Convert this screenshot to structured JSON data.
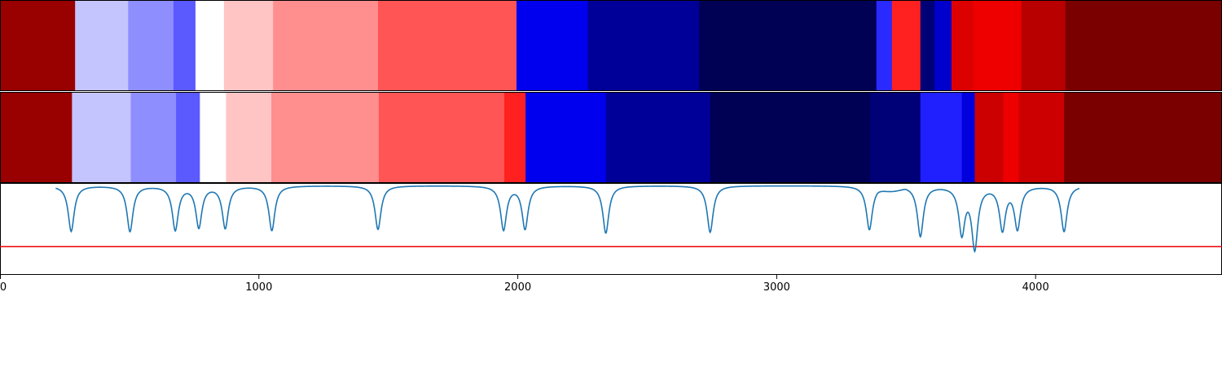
{
  "chart_data": {
    "type": "heatmap",
    "title": "",
    "xlabel": "",
    "ylabel": "",
    "xlim": [
      0,
      4720
    ],
    "grid": false,
    "colormap": "seismic",
    "xticks": [
      {
        "value": 0,
        "label": "0"
      },
      {
        "value": 1000,
        "label": "1000"
      },
      {
        "value": 2000,
        "label": "2000"
      },
      {
        "value": 3000,
        "label": "3000"
      },
      {
        "value": 4000,
        "label": "4000"
      }
    ],
    "rows": [
      {
        "name": "",
        "segments": [
          {
            "start": 0,
            "end": 290,
            "color": "#990000"
          },
          {
            "start": 290,
            "end": 495,
            "color": "#c4c4ff"
          },
          {
            "start": 495,
            "end": 670,
            "color": "#8e8eff"
          },
          {
            "start": 670,
            "end": 755,
            "color": "#5a5aff"
          },
          {
            "start": 755,
            "end": 865,
            "color": "#ffffff"
          },
          {
            "start": 865,
            "end": 1055,
            "color": "#ffc4c4"
          },
          {
            "start": 1055,
            "end": 1460,
            "color": "#ff8e8e"
          },
          {
            "start": 1460,
            "end": 1995,
            "color": "#ff5555"
          },
          {
            "start": 1995,
            "end": 2270,
            "color": "#0000ee"
          },
          {
            "start": 2270,
            "end": 2700,
            "color": "#000099"
          },
          {
            "start": 2700,
            "end": 3385,
            "color": "#000055"
          },
          {
            "start": 3385,
            "end": 3445,
            "color": "#2a2aff"
          },
          {
            "start": 3445,
            "end": 3555,
            "color": "#ff2020"
          },
          {
            "start": 3555,
            "end": 3610,
            "color": "#000077"
          },
          {
            "start": 3610,
            "end": 3675,
            "color": "#0000cc"
          },
          {
            "start": 3675,
            "end": 3760,
            "color": "#dd0000"
          },
          {
            "start": 3760,
            "end": 3945,
            "color": "#ee0000"
          },
          {
            "start": 3945,
            "end": 4115,
            "color": "#b80000"
          },
          {
            "start": 4115,
            "end": 4720,
            "color": "#7a0000"
          }
        ]
      },
      {
        "name": "",
        "segments": [
          {
            "start": 0,
            "end": 278,
            "color": "#990000"
          },
          {
            "start": 278,
            "end": 505,
            "color": "#c4c4ff"
          },
          {
            "start": 505,
            "end": 680,
            "color": "#8e8eff"
          },
          {
            "start": 680,
            "end": 772,
            "color": "#5a5aff"
          },
          {
            "start": 772,
            "end": 873,
            "color": "#ffffff"
          },
          {
            "start": 873,
            "end": 1048,
            "color": "#ffc4c4"
          },
          {
            "start": 1048,
            "end": 1463,
            "color": "#ff8e8e"
          },
          {
            "start": 1463,
            "end": 1948,
            "color": "#ff5555"
          },
          {
            "start": 1948,
            "end": 2030,
            "color": "#ff2020"
          },
          {
            "start": 2030,
            "end": 2340,
            "color": "#0000ee"
          },
          {
            "start": 2340,
            "end": 2743,
            "color": "#000099"
          },
          {
            "start": 2743,
            "end": 3360,
            "color": "#000055"
          },
          {
            "start": 3360,
            "end": 3555,
            "color": "#000077"
          },
          {
            "start": 3555,
            "end": 3715,
            "color": "#2020ff"
          },
          {
            "start": 3715,
            "end": 3765,
            "color": "#0000dd"
          },
          {
            "start": 3765,
            "end": 3875,
            "color": "#cc0000"
          },
          {
            "start": 3875,
            "end": 3935,
            "color": "#ee0000"
          },
          {
            "start": 3935,
            "end": 4110,
            "color": "#cc0000"
          },
          {
            "start": 4110,
            "end": 4720,
            "color": "#7a0000"
          }
        ]
      }
    ],
    "line_panel": {
      "ylim": [
        0,
        1
      ],
      "baseline": 0.98,
      "threshold": {
        "value": 0.31,
        "color": "#ee0000"
      },
      "line_color": "#1f77b4",
      "dips": [
        {
          "x": 275,
          "depth": 0.5
        },
        {
          "x": 502,
          "depth": 0.5
        },
        {
          "x": 677,
          "depth": 0.48
        },
        {
          "x": 768,
          "depth": 0.45
        },
        {
          "x": 870,
          "depth": 0.46
        },
        {
          "x": 1050,
          "depth": 0.49
        },
        {
          "x": 1460,
          "depth": 0.48
        },
        {
          "x": 1945,
          "depth": 0.48
        },
        {
          "x": 2028,
          "depth": 0.47
        },
        {
          "x": 2340,
          "depth": 0.52
        },
        {
          "x": 2743,
          "depth": 0.51
        },
        {
          "x": 3358,
          "depth": 0.48
        },
        {
          "x": 3555,
          "depth": 0.55
        },
        {
          "x": 3715,
          "depth": 0.51
        },
        {
          "x": 3765,
          "depth": 0.67
        },
        {
          "x": 3872,
          "depth": 0.47
        },
        {
          "x": 3930,
          "depth": 0.46
        },
        {
          "x": 4110,
          "depth": 0.5
        }
      ],
      "shelf": {
        "start": 3390,
        "end": 3540,
        "drop": 0.04
      }
    }
  }
}
